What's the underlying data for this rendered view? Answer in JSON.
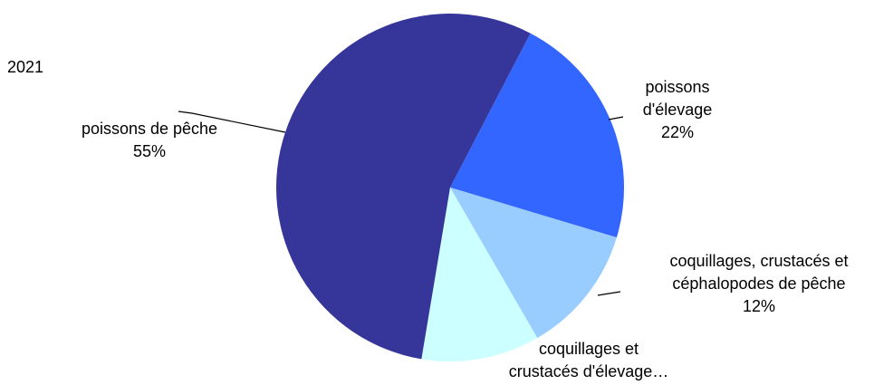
{
  "chart_data": {
    "type": "pie",
    "title": "2021",
    "categories": [
      "poissons d'élevage",
      "coquillages, crustacés et céphalopodes de pêche",
      "coquillages et crustacés d'élevage…",
      "poissons de pêche"
    ],
    "values": [
      22,
      12,
      11,
      55
    ],
    "value_labels": [
      "22%",
      "12%",
      null,
      "55%"
    ],
    "colors": [
      "#3366ff",
      "#99ccff",
      "#ccffff",
      "#35359a"
    ]
  }
}
